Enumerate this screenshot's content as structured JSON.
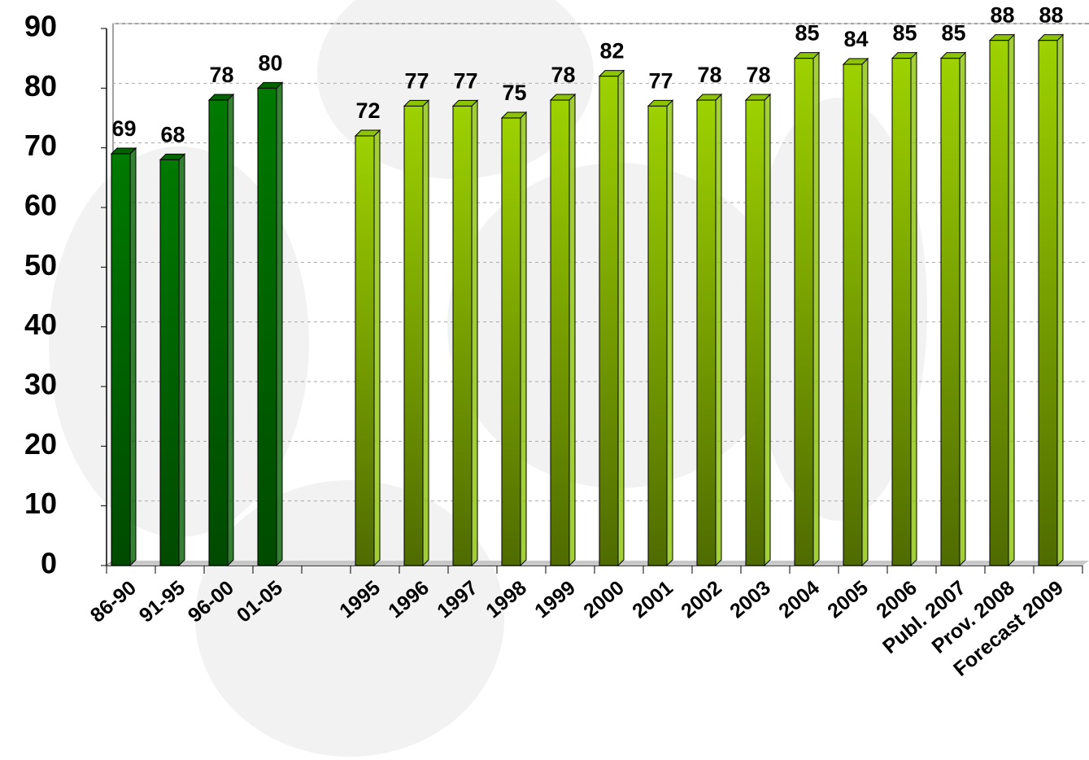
{
  "chart_data": {
    "type": "bar",
    "categories": [
      "86-90",
      "91-95",
      "96-00",
      "01-05",
      null,
      "1995",
      "1996",
      "1997",
      "1998",
      "1999",
      "2000",
      "2001",
      "2002",
      "2003",
      "2004",
      "2005",
      "2006",
      "Publ. 2007",
      "Prov. 2008",
      "Forecast 2009"
    ],
    "series": [
      {
        "color": "#006400",
        "values": [
          69,
          68,
          78,
          80,
          null,
          null,
          null,
          null,
          null,
          null,
          null,
          null,
          null,
          null,
          null,
          null,
          null,
          null,
          null,
          null
        ]
      },
      {
        "color": "#8cc400",
        "values": [
          null,
          null,
          null,
          null,
          null,
          72,
          77,
          77,
          75,
          78,
          82,
          77,
          78,
          78,
          85,
          84,
          85,
          85,
          88,
          88
        ]
      }
    ],
    "ylim": [
      0,
      90
    ],
    "yticks": [
      0,
      10,
      20,
      30,
      40,
      50,
      60,
      70,
      80,
      90
    ],
    "grid": true
  }
}
